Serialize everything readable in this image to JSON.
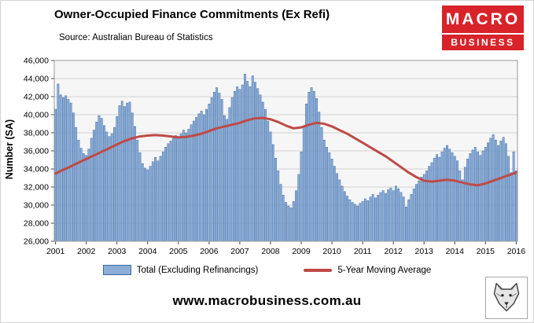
{
  "header": {
    "title": "Owner-Occupied Finance Commitments (Ex Refi)",
    "source": "Source: Australian  Bureau of Statistics"
  },
  "logo": {
    "line1": "MACRO",
    "line2": "BUSINESS"
  },
  "footer": {
    "url": "www.macrobusiness.com.au"
  },
  "legend": {
    "series1": "Total (Excluding Refinancings)",
    "series2": "5-Year Moving Average"
  },
  "colors": {
    "brand_red": "#d8232a",
    "bar_fill": "#8caed6",
    "bar_stroke": "#3a6aaa",
    "ma_line": "#bf4a47",
    "plot_bg": "#f6f6f6",
    "plot_border": "#9a9a9a",
    "grid": "#d2d2d2",
    "axis_text": "#000000"
  },
  "chart_data": {
    "type": "bar",
    "title": "Owner-Occupied Finance Commitments (Ex Refi)",
    "xlabel": "",
    "ylabel": "Number (SA)",
    "ylim": [
      26000,
      46000
    ],
    "y_tick_step": 2000,
    "y_tick_labels": [
      "26,000",
      "28,000",
      "30,000",
      "32,000",
      "34,000",
      "36,000",
      "38,000",
      "40,000",
      "42,000",
      "44,000",
      "46,000"
    ],
    "x_tick_labels": [
      "2001",
      "2002",
      "2003",
      "2004",
      "2005",
      "2006",
      "2007",
      "2008",
      "2009",
      "2010",
      "2011",
      "2012",
      "2013",
      "2014",
      "2015",
      "2016"
    ],
    "grid": true,
    "legend_position": "bottom",
    "frequency": "monthly",
    "start": "2001-01",
    "series": [
      {
        "name": "Total (Excluding Refinancings)",
        "type": "bar",
        "values": [
          40600,
          43400,
          42200,
          41900,
          42100,
          41700,
          41300,
          40200,
          38600,
          37200,
          36300,
          35700,
          35500,
          36200,
          37400,
          38300,
          39200,
          39900,
          39600,
          38800,
          38100,
          37600,
          37900,
          38600,
          39800,
          41000,
          41500,
          40900,
          41300,
          41400,
          40200,
          38700,
          37200,
          35800,
          34600,
          34100,
          33900,
          34300,
          34800,
          35300,
          34900,
          35400,
          35900,
          36400,
          36800,
          37100,
          37400,
          37700,
          37500,
          37900,
          38300,
          38000,
          38400,
          38900,
          39300,
          39700,
          40100,
          40400,
          40000,
          40600,
          41200,
          41900,
          42500,
          43000,
          42400,
          41700,
          39900,
          39500,
          40800,
          41900,
          42600,
          43100,
          42800,
          43300,
          44500,
          43700,
          43100,
          44300,
          43600,
          42900,
          42200,
          41400,
          40600,
          39300,
          38100,
          36700,
          35200,
          33800,
          32300,
          31100,
          30300,
          29900,
          29700,
          30400,
          31600,
          33400,
          35900,
          38700,
          41200,
          42500,
          43000,
          42600,
          41800,
          40300,
          38600,
          37200,
          36400,
          35800,
          35100,
          34300,
          33500,
          32800,
          32100,
          31500,
          31000,
          30600,
          30300,
          30100,
          29900,
          30200,
          30400,
          30700,
          30500,
          30900,
          31200,
          30800,
          31100,
          31400,
          31600,
          31300,
          31700,
          31900,
          31600,
          32100,
          31800,
          31400,
          30900,
          29800,
          30600,
          31200,
          31800,
          32300,
          32700,
          33100,
          33400,
          33800,
          34300,
          34700,
          35200,
          35600,
          35300,
          35900,
          36300,
          36600,
          36200,
          35800,
          35400,
          34900,
          33800,
          32800,
          34200,
          35100,
          35700,
          36100,
          36400,
          35900,
          35500,
          36000,
          36400,
          36900,
          37400,
          37800,
          37200,
          36600,
          37100,
          37500,
          36800,
          35400,
          33600,
          35900,
          33800
        ]
      },
      {
        "name": "5-Year Moving Average",
        "type": "line",
        "frequency": "quarterly",
        "points_every_n_months": 3,
        "values": [
          33500,
          33900,
          34300,
          34700,
          35100,
          35500,
          35900,
          36300,
          36700,
          37100,
          37400,
          37600,
          37700,
          37750,
          37700,
          37600,
          37500,
          37550,
          37700,
          37900,
          38200,
          38500,
          38700,
          38900,
          39100,
          39400,
          39600,
          39650,
          39500,
          39200,
          38800,
          38500,
          38600,
          38900,
          39100,
          39000,
          38700,
          38300,
          37900,
          37400,
          36900,
          36400,
          35900,
          35400,
          34800,
          34200,
          33600,
          33100,
          32700,
          32600,
          32700,
          32800,
          32700,
          32500,
          32300,
          32200,
          32400,
          32700,
          33000,
          33300,
          33600
        ]
      }
    ]
  }
}
